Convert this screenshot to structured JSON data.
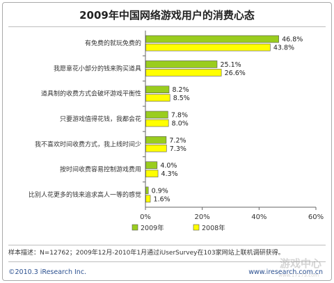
{
  "title": "2009年中国网络游戏用户的消费心态",
  "chart_data": {
    "type": "bar",
    "orientation": "horizontal",
    "categories": [
      "有免费的就玩免费的",
      "我愿意花小部分的钱来购买道具",
      "道具制的收费方式会破坏游戏平衡性",
      "只要游戏值得花钱，我都会花",
      "我不喜欢时间收费方式，我上线时间少",
      "按时间收费容易控制游戏费用",
      "比别人花更多的钱来追求高人一等的感觉"
    ],
    "series": [
      {
        "name": "2009年",
        "color": "#9acd1e",
        "values": [
          46.8,
          25.1,
          8.2,
          7.8,
          7.2,
          4.0,
          0.9
        ],
        "labels": [
          "46.8%",
          "25.1%",
          "8.2%",
          "7.8%",
          "7.2%",
          "4.0%",
          "0.9%"
        ]
      },
      {
        "name": "2008年",
        "color": "#ffff00",
        "values": [
          43.8,
          26.6,
          8.5,
          8.0,
          7.3,
          4.3,
          1.6
        ],
        "labels": [
          "43.8%",
          "26.6%",
          "8.5%",
          "8.0%",
          "7.3%",
          "4.3%",
          "1.6%"
        ]
      }
    ],
    "xlim": [
      0,
      60
    ],
    "xticks": [
      0,
      20,
      40,
      60
    ],
    "xtick_labels": [
      "0%",
      "20%",
      "40%",
      "60%"
    ],
    "grid": false,
    "legend_position": "bottom-center"
  },
  "sample_note": "样本描述：N=12762；2009年12月-2010年1月通过iUserSurvey在103家网站上联机调研获得。",
  "copyright": "©2010.3 iResearch Inc.",
  "website": "www.iresearch.com.cn",
  "watermark_text": "游戏中心",
  "watermark_sub": "www.17173.com"
}
